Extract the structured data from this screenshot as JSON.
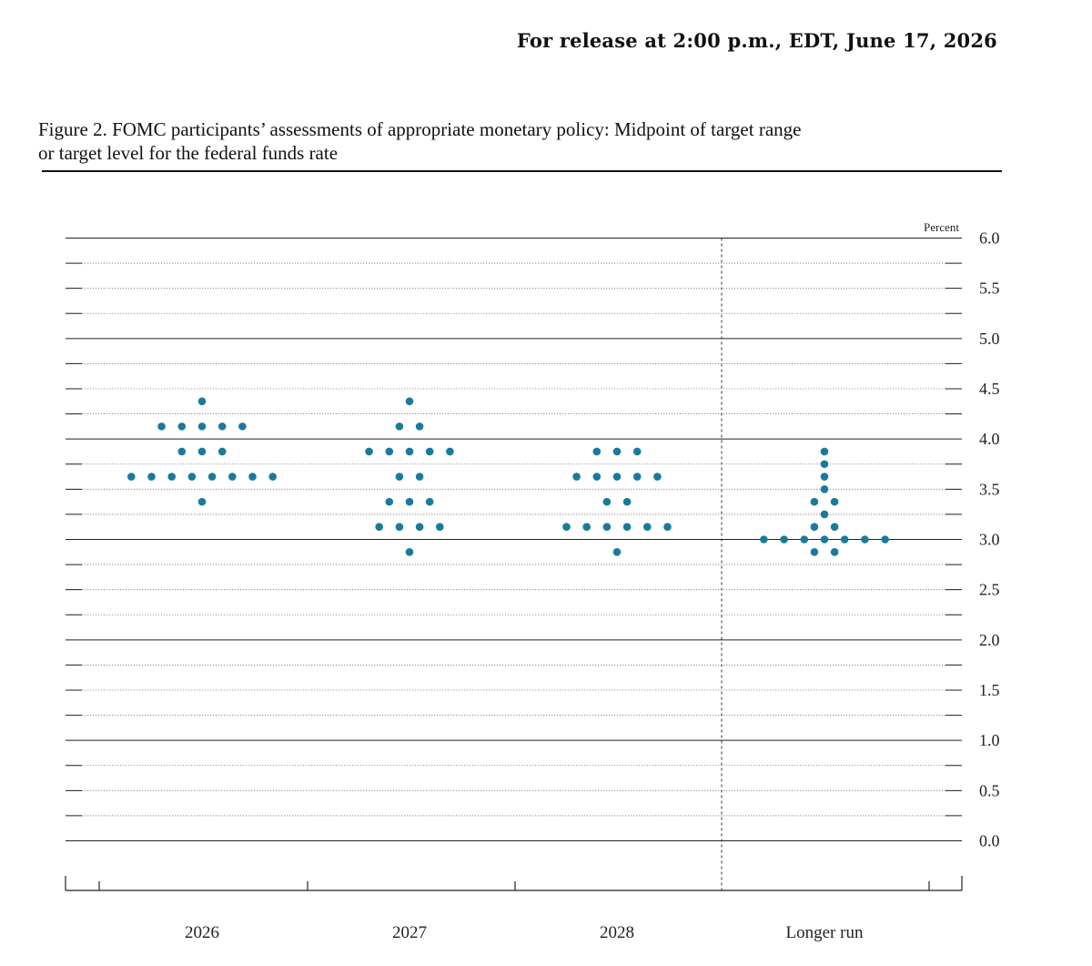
{
  "release": "For release at 2:00 p.m., EDT, June 17, 2026",
  "figure_caption_line1": "Figure 2. FOMC participants’ assessments of appropriate monetary policy: Midpoint of target range",
  "figure_caption_line2": "or target level for the federal funds rate",
  "colors": {
    "dot": "#1b7a9c",
    "text": "#111111"
  },
  "chart_data": {
    "type": "scatter",
    "subtype": "dot-plot",
    "unit_label": "Percent",
    "ylim": [
      0.0,
      6.0
    ],
    "y_ticks": [
      "6.0",
      "5.5",
      "5.0",
      "4.5",
      "4.0",
      "3.5",
      "3.0",
      "2.5",
      "2.0",
      "1.5",
      "1.0",
      "0.5",
      "0.0"
    ],
    "categories": [
      "2026",
      "2027",
      "2028",
      "Longer run"
    ],
    "points": {
      "2026": [
        {
          "rate": 4.375,
          "count": 1
        },
        {
          "rate": 4.125,
          "count": 5
        },
        {
          "rate": 3.875,
          "count": 3
        },
        {
          "rate": 3.625,
          "count": 8
        },
        {
          "rate": 3.375,
          "count": 1
        }
      ],
      "2027": [
        {
          "rate": 4.375,
          "count": 1
        },
        {
          "rate": 4.125,
          "count": 2
        },
        {
          "rate": 3.875,
          "count": 5
        },
        {
          "rate": 3.625,
          "count": 2
        },
        {
          "rate": 3.375,
          "count": 3
        },
        {
          "rate": 3.125,
          "count": 4
        },
        {
          "rate": 2.875,
          "count": 1
        }
      ],
      "2028": [
        {
          "rate": 3.875,
          "count": 3
        },
        {
          "rate": 3.625,
          "count": 5
        },
        {
          "rate": 3.375,
          "count": 2
        },
        {
          "rate": 3.125,
          "count": 6
        },
        {
          "rate": 2.875,
          "count": 1
        }
      ],
      "Longer run": [
        {
          "rate": 3.875,
          "count": 1
        },
        {
          "rate": 3.75,
          "count": 1
        },
        {
          "rate": 3.625,
          "count": 1
        },
        {
          "rate": 3.5,
          "count": 1
        },
        {
          "rate": 3.375,
          "count": 2
        },
        {
          "rate": 3.25,
          "count": 1
        },
        {
          "rate": 3.125,
          "count": 2
        },
        {
          "rate": 3.0,
          "count": 7
        },
        {
          "rate": 2.875,
          "count": 2
        }
      ]
    },
    "grid": true,
    "divider_before": "Longer run"
  }
}
